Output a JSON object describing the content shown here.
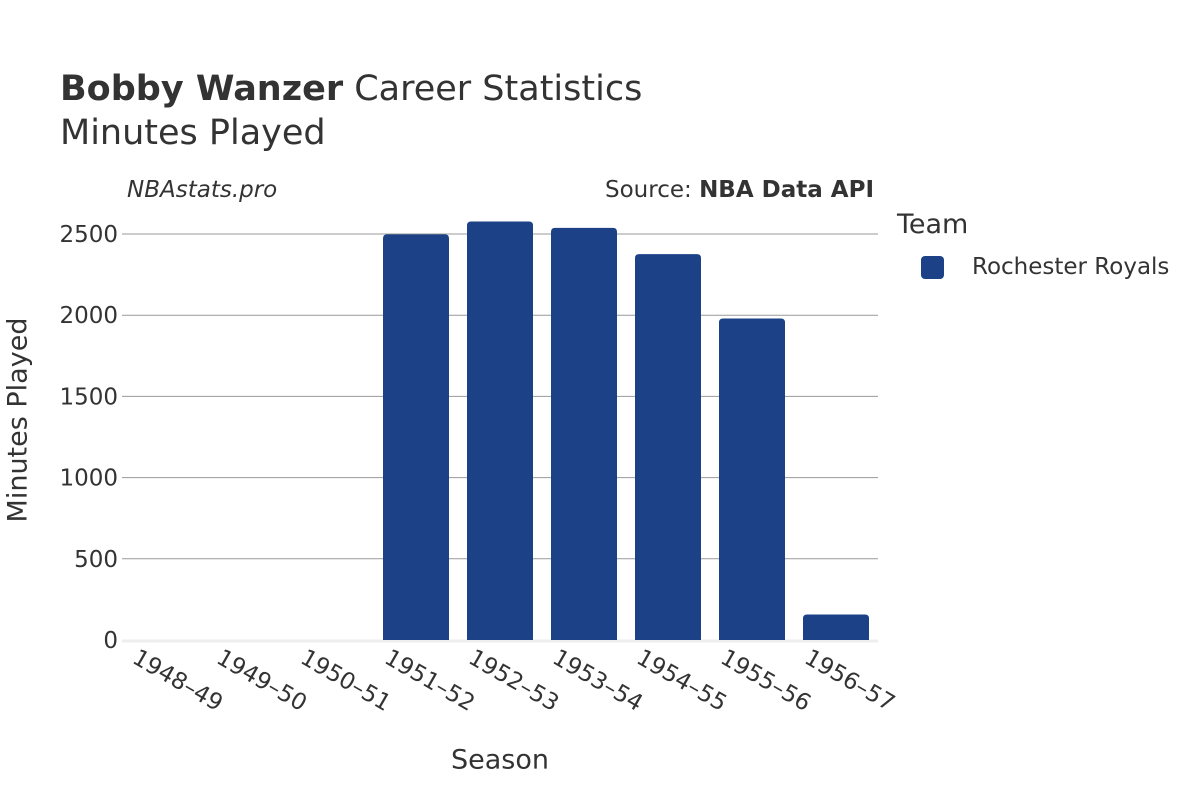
{
  "header": {
    "title_bold": "Bobby Wanzer",
    "title_rest": " Career Statistics",
    "subtitle": "Minutes Played",
    "site": "NBAstats.pro",
    "source_prefix": "Source: ",
    "source_name": "NBA Data API"
  },
  "legend": {
    "title": "Team",
    "items": [
      {
        "label": "Rochester Royals",
        "color": "#1c4187"
      }
    ]
  },
  "chart_data": {
    "type": "bar",
    "title": "Bobby Wanzer Career Statistics",
    "subtitle": "Minutes Played",
    "xlabel": "Season",
    "ylabel": "Minutes Played",
    "categories": [
      "1948–49",
      "1949–50",
      "1950–51",
      "1951–52",
      "1952–53",
      "1953–54",
      "1954–55",
      "1955–56",
      "1956–57"
    ],
    "series": [
      {
        "name": "Rochester Royals",
        "color": "#1c4187",
        "values": [
          null,
          null,
          null,
          2498,
          2577,
          2538,
          2376,
          1980,
          157
        ]
      }
    ],
    "ylim": [
      0,
      2600
    ],
    "yticks": [
      0,
      500,
      1000,
      1500,
      2000,
      2500
    ],
    "grid": true,
    "legend_position": "right"
  }
}
